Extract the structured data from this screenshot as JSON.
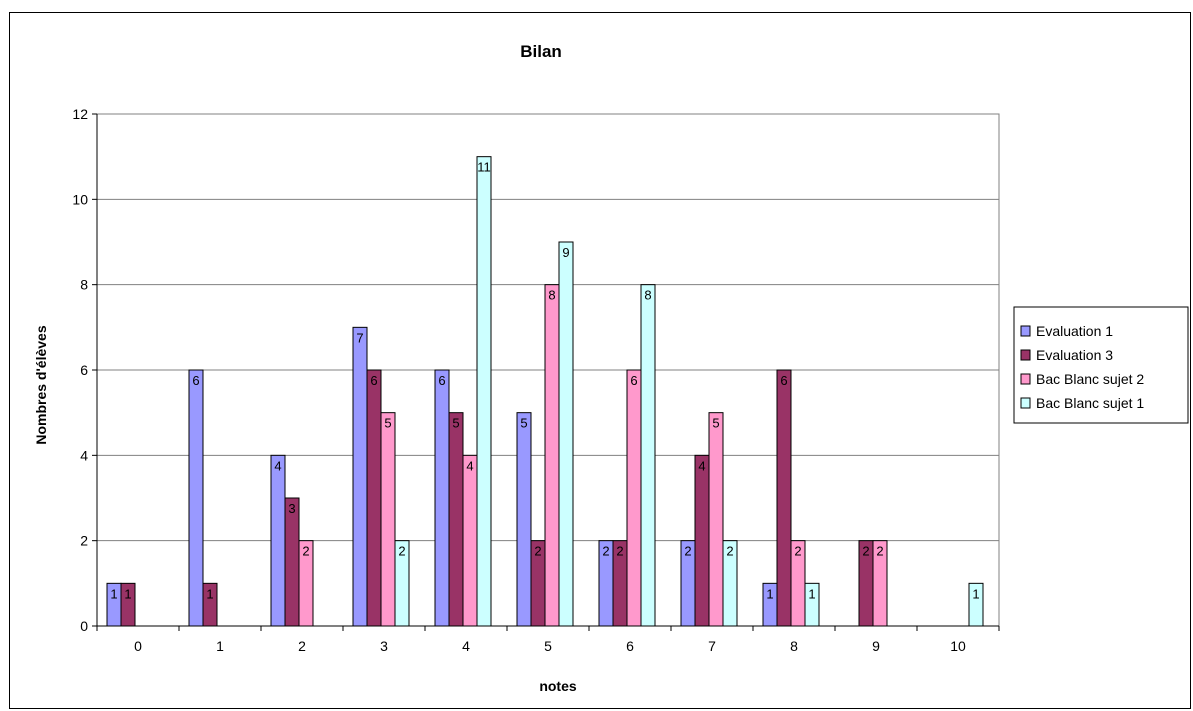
{
  "chart_data": {
    "type": "bar",
    "title": "Bilan",
    "xlabel": "notes",
    "ylabel": "Nombres d'élèves",
    "categories": [
      "0",
      "1",
      "2",
      "3",
      "4",
      "5",
      "6",
      "7",
      "8",
      "9",
      "10"
    ],
    "ylim": [
      0,
      12
    ],
    "yticks": [
      0,
      2,
      4,
      6,
      8,
      10,
      12
    ],
    "grid": true,
    "legend_position": "right",
    "series": [
      {
        "name": "Evaluation 1",
        "color": "#9999ff",
        "values": [
          1,
          6,
          4,
          7,
          6,
          5,
          2,
          2,
          1,
          null,
          null
        ]
      },
      {
        "name": "Evaluation 3",
        "color": "#993366",
        "values": [
          1,
          1,
          3,
          6,
          5,
          2,
          2,
          4,
          6,
          2,
          null
        ]
      },
      {
        "name": "Bac Blanc sujet 2",
        "color": "#ff99cc",
        "values": [
          null,
          null,
          2,
          5,
          4,
          8,
          6,
          5,
          2,
          2,
          null
        ]
      },
      {
        "name": "Bac Blanc sujet 1",
        "color": "#ccffff",
        "values": [
          null,
          null,
          null,
          2,
          11,
          9,
          8,
          2,
          1,
          null,
          1
        ]
      }
    ]
  }
}
